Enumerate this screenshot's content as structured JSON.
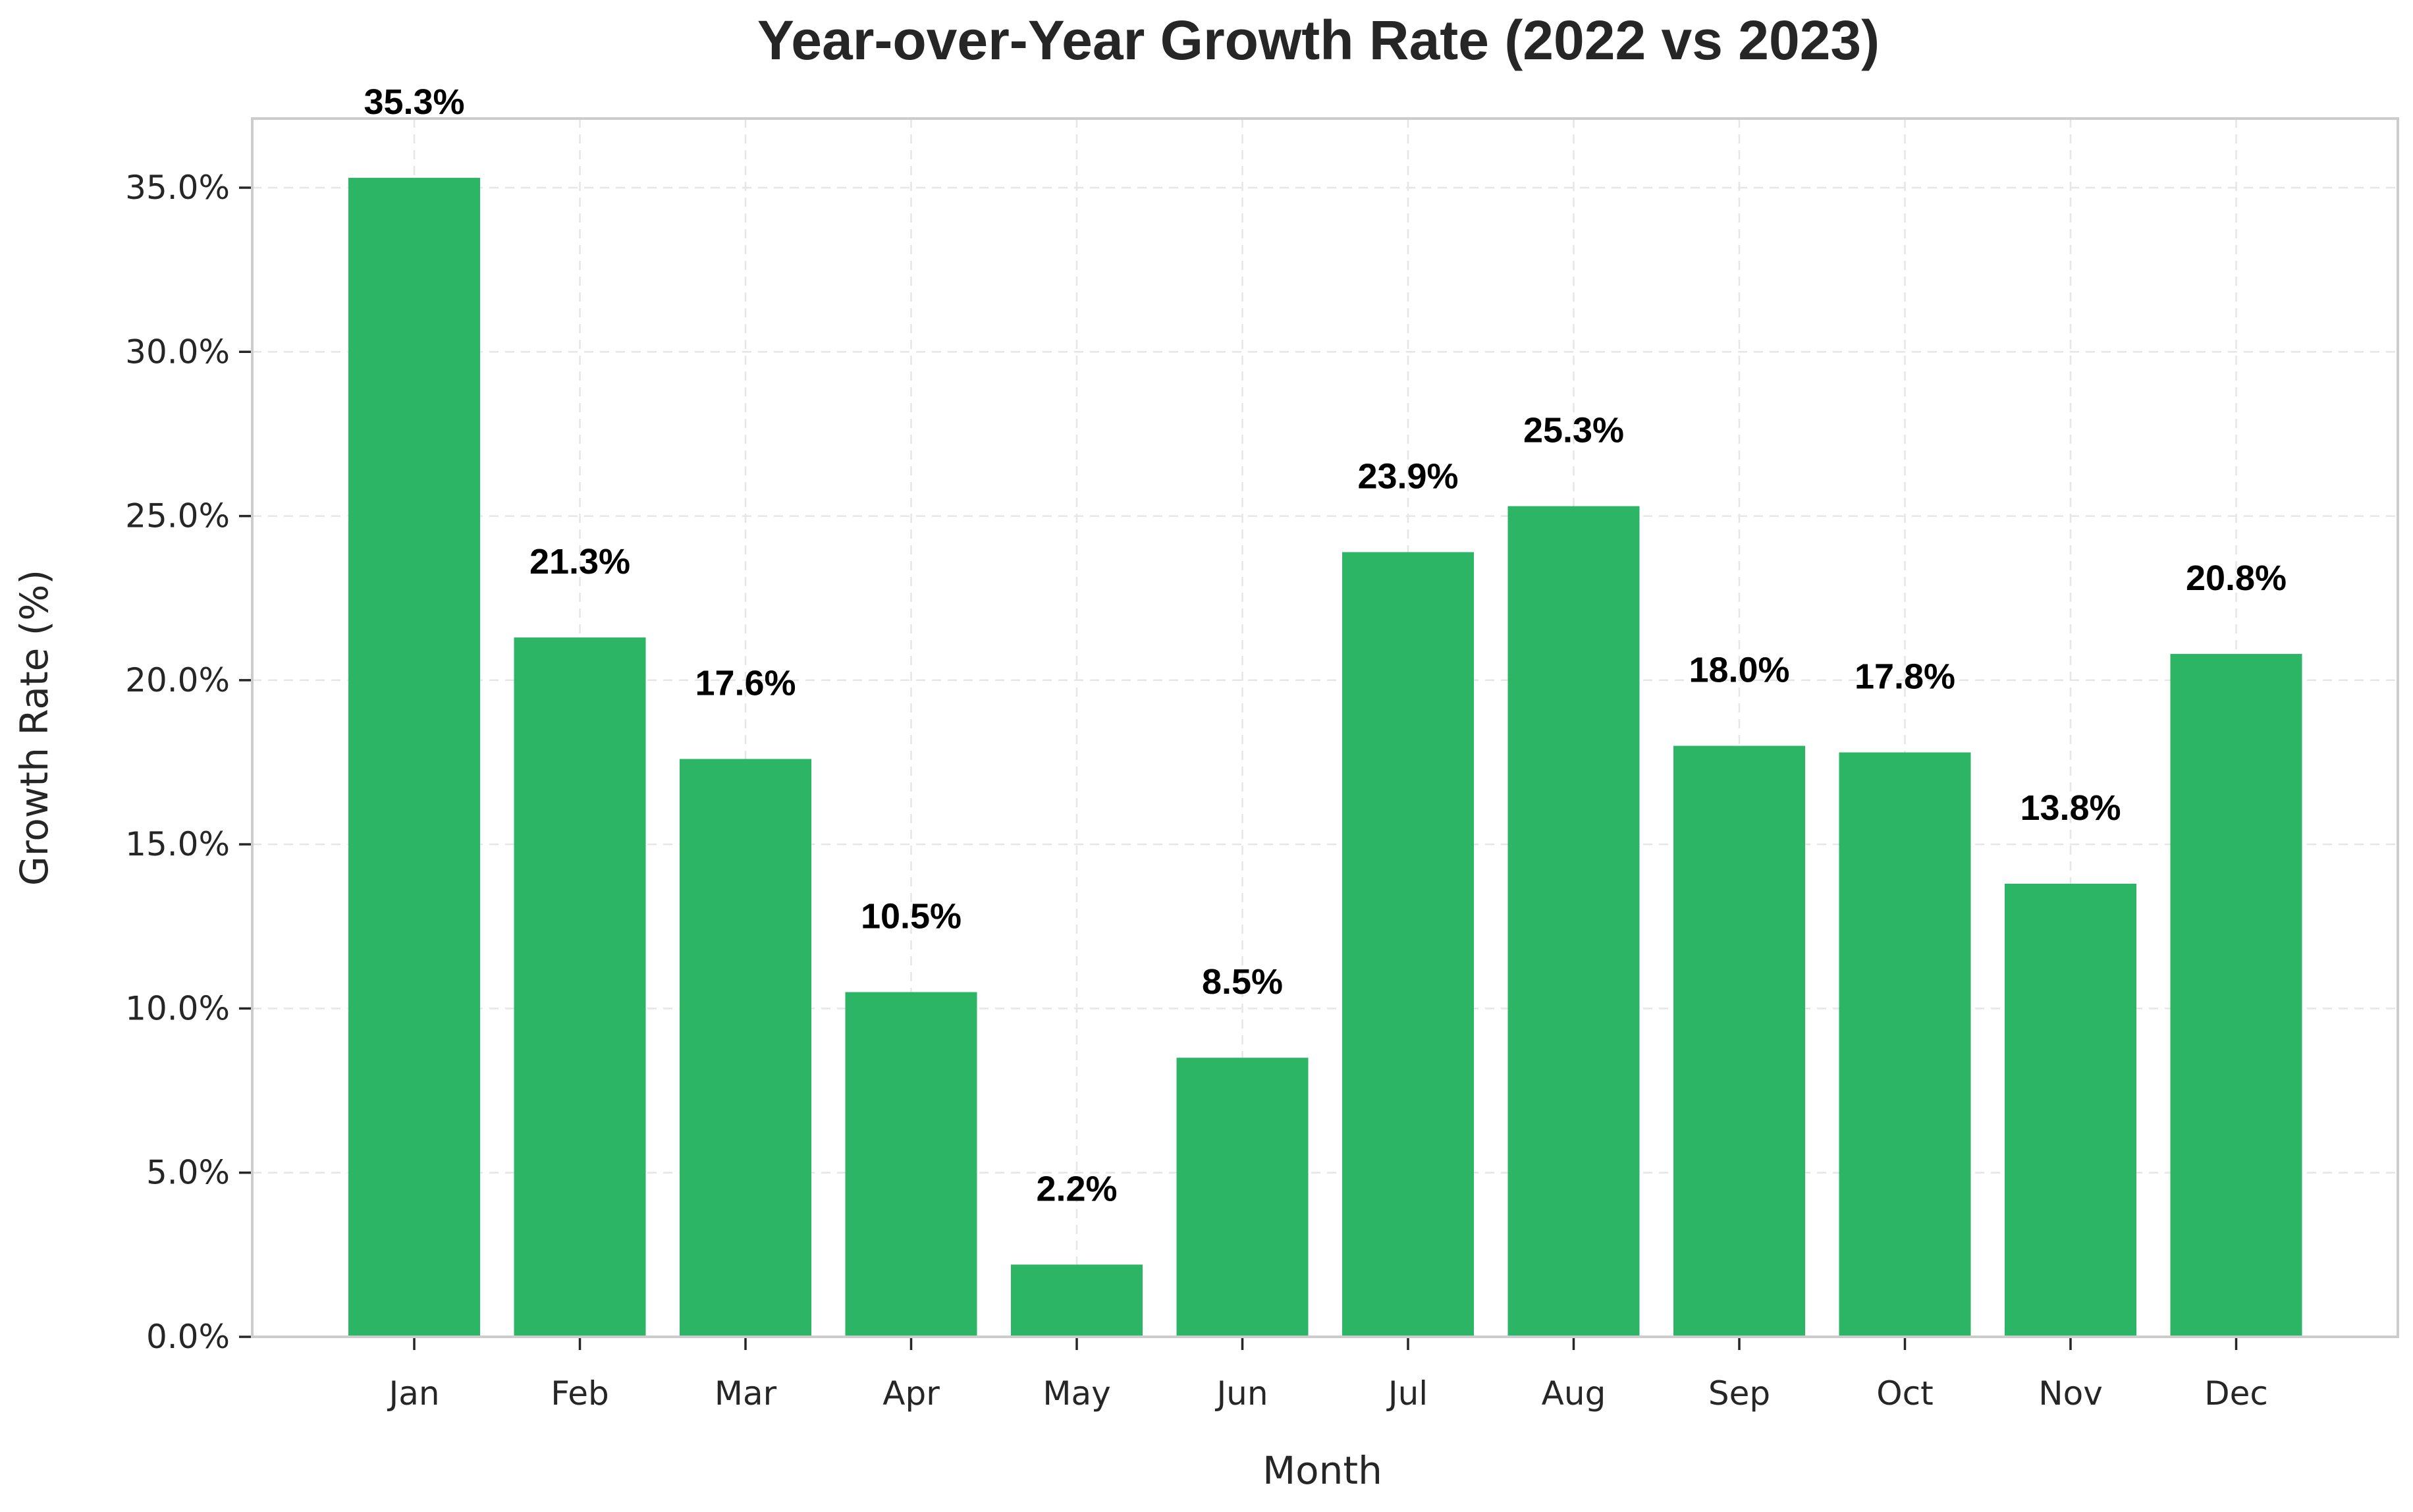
{
  "chart_data": {
    "type": "bar",
    "title": "Year-over-Year Growth Rate (2022 vs 2023)",
    "xlabel": "Month",
    "ylabel": "Growth Rate (%)",
    "categories": [
      "Jan",
      "Feb",
      "Mar",
      "Apr",
      "May",
      "Jun",
      "Jul",
      "Aug",
      "Sep",
      "Oct",
      "Nov",
      "Dec"
    ],
    "values": [
      35.3,
      21.3,
      17.6,
      10.5,
      2.2,
      8.5,
      23.9,
      25.3,
      18.0,
      17.8,
      13.8,
      20.8
    ],
    "data_labels": [
      "35.3%",
      "21.3%",
      "17.6%",
      "10.5%",
      "2.2%",
      "8.5%",
      "23.9%",
      "25.3%",
      "18.0%",
      "17.8%",
      "13.8%",
      "20.8%"
    ],
    "yticks": [
      0,
      5,
      10,
      15,
      20,
      25,
      30,
      35
    ],
    "ytick_labels": [
      "0.0%",
      "5.0%",
      "10.0%",
      "15.0%",
      "20.0%",
      "25.0%",
      "30.0%",
      "35.0%"
    ],
    "ylim": [
      0,
      37.1
    ],
    "bar_color": "#2bb564",
    "grid": true,
    "legend": null
  }
}
